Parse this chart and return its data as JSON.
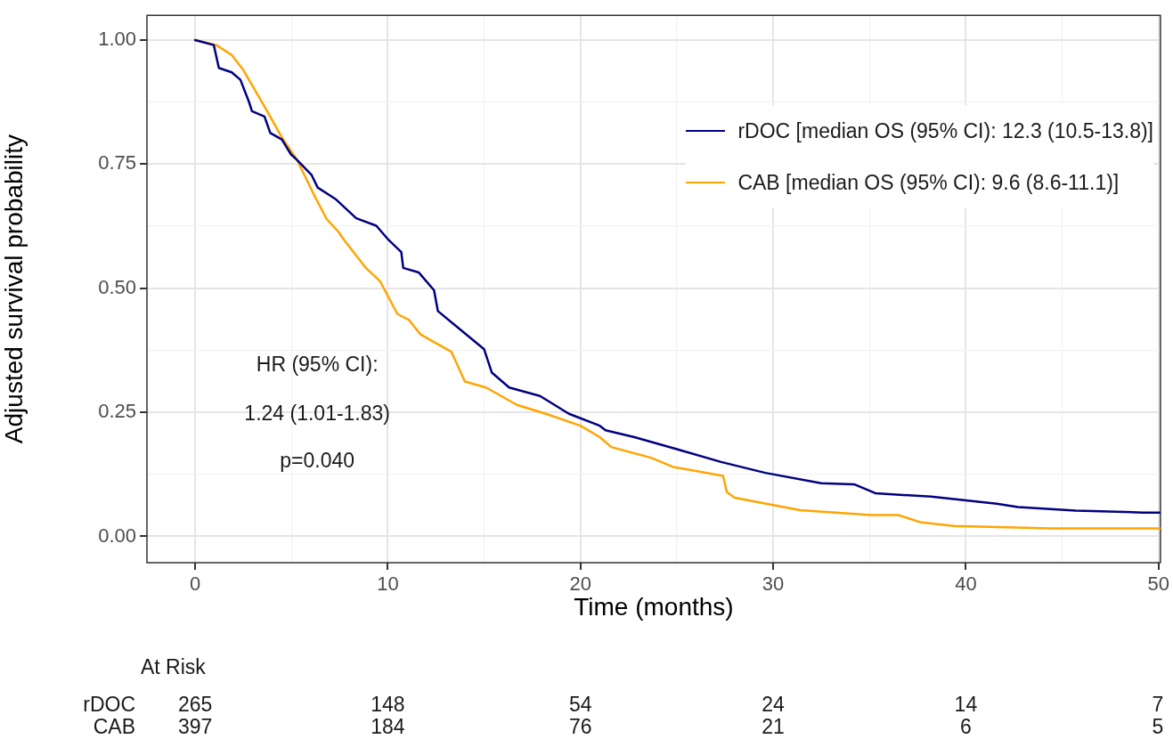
{
  "chart_data": {
    "type": "line",
    "xlabel": "Time (months)",
    "ylabel": "Adjusted survival probability",
    "xlim": [
      -2.5,
      50.1
    ],
    "ylim": [
      -0.053,
      1.05
    ],
    "xticks": [
      0,
      {
        "value": 5,
        "label": null
      },
      10,
      {
        "value": 15,
        "label": null
      },
      20,
      {
        "value": 25,
        "label": null
      },
      30,
      {
        "value": 35,
        "label": null
      },
      40,
      {
        "value": 45,
        "label": null
      },
      50
    ],
    "yticks": [
      {
        "value": 0,
        "label": "0.00"
      },
      {
        "value": 0.125,
        "label": null
      },
      {
        "value": 0.25,
        "label": "0.25"
      },
      {
        "value": 0.375,
        "label": null
      },
      {
        "value": 0.5,
        "label": "0.50"
      },
      {
        "value": 0.625,
        "label": null
      },
      {
        "value": 0.75,
        "label": "0.75"
      },
      {
        "value": 0.875,
        "label": null
      },
      {
        "value": 1,
        "label": "1.00"
      }
    ],
    "grid": true,
    "legend": "top right",
    "series": [
      {
        "name": "rDOC [median OS (95% CI): 12.3 (10.5-13.8)]",
        "color": "#000080",
        "x": [
          0,
          0.97,
          1.23,
          1.9,
          2.35,
          2.8,
          2.95,
          3.6,
          3.9,
          4.5,
          4.97,
          5.3,
          6.05,
          6.36,
          7.28,
          8.36,
          9.4,
          10.05,
          10.7,
          10.8,
          11.6,
          12.4,
          12.6,
          13.6,
          15.0,
          15.4,
          16.3,
          17.9,
          19.4,
          21.0,
          21.3,
          22.8,
          24.8,
          27.3,
          29.6,
          32.5,
          34.2,
          35.3,
          38.2,
          41.6,
          42.7,
          45.7,
          49.2,
          50.1
        ],
        "values": [
          1.0,
          0.99,
          0.944,
          0.935,
          0.92,
          0.875,
          0.857,
          0.846,
          0.813,
          0.8,
          0.77,
          0.758,
          0.728,
          0.703,
          0.68,
          0.641,
          0.626,
          0.597,
          0.573,
          0.541,
          0.532,
          0.496,
          0.454,
          0.422,
          0.377,
          0.33,
          0.3,
          0.283,
          0.247,
          0.223,
          0.214,
          0.2,
          0.178,
          0.15,
          0.128,
          0.107,
          0.105,
          0.087,
          0.08,
          0.066,
          0.059,
          0.052,
          0.048,
          0.048
        ]
      },
      {
        "name": "CAB [median OS (95% CI): 9.6 (8.6-11.1)]",
        "color": "#ffa500",
        "x": [
          0,
          1.1,
          1.9,
          2.5,
          3.74,
          4.5,
          5.3,
          6.2,
          6.82,
          7.43,
          7.74,
          8.82,
          8.97,
          9.6,
          10.5,
          11.1,
          11.7,
          13.3,
          14.0,
          15.1,
          16.7,
          18.2,
          20.0,
          21.0,
          21.6,
          23.7,
          24.8,
          27.4,
          27.6,
          28.0,
          31.4,
          35.1,
          36.5,
          37.7,
          39.4,
          44.4,
          50.1
        ],
        "values": [
          1.0,
          0.99,
          0.97,
          0.94,
          0.857,
          0.804,
          0.758,
          0.686,
          0.64,
          0.614,
          0.597,
          0.543,
          0.537,
          0.514,
          0.448,
          0.436,
          0.407,
          0.372,
          0.312,
          0.3,
          0.265,
          0.247,
          0.223,
          0.2,
          0.18,
          0.158,
          0.14,
          0.122,
          0.089,
          0.078,
          0.053,
          0.043,
          0.043,
          0.028,
          0.021,
          0.016,
          0.016
        ]
      }
    ],
    "annotations": [
      "HR (95% CI):",
      "1.24 (1.01-1.83)",
      "p=0.040",
      "At Risk",
      "rDOC",
      "265",
      "148",
      "54",
      "24",
      "14",
      "7",
      "CAB",
      "397",
      "184",
      "76",
      "21",
      "6",
      "5"
    ]
  }
}
